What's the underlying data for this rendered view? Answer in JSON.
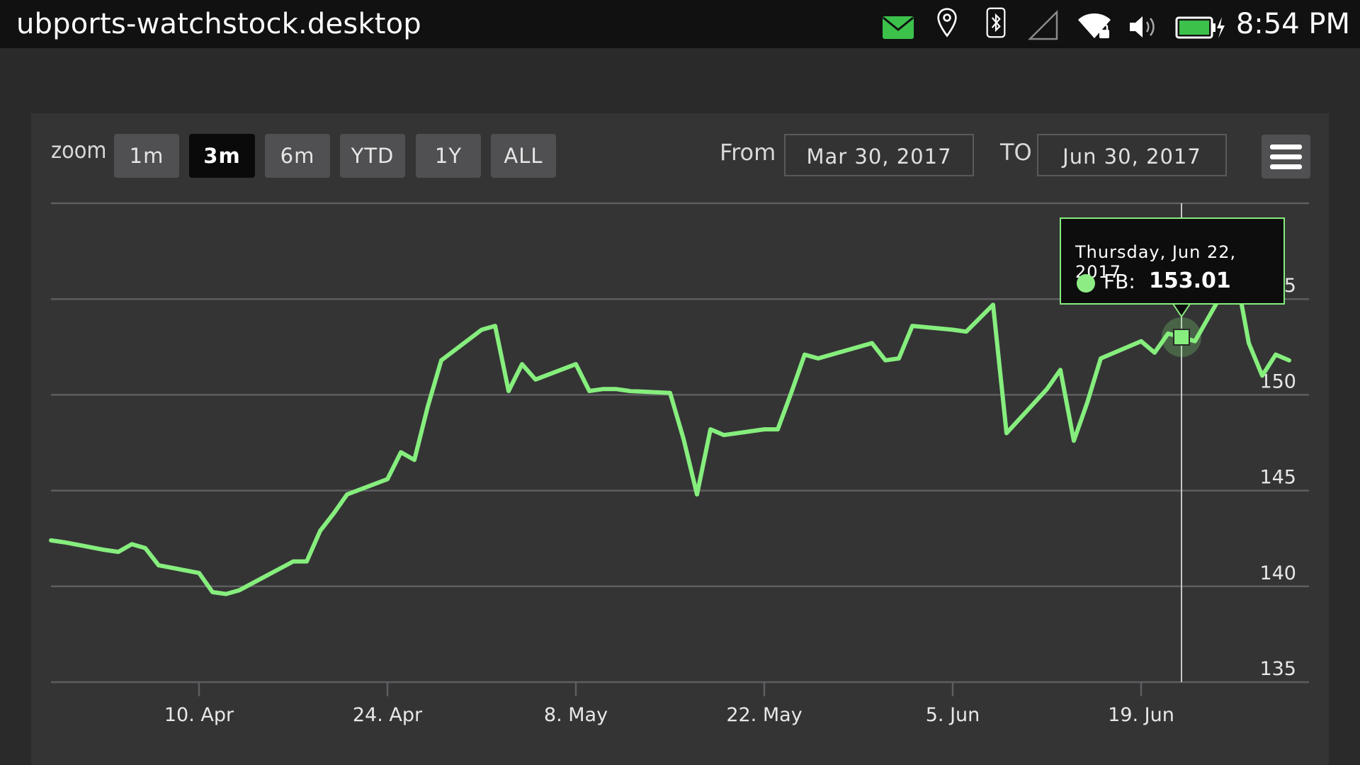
{
  "status_bar": {
    "title": "ubports-watchstock.desktop",
    "time": "8:54 PM",
    "indicators": [
      "mail-icon",
      "location-icon",
      "bluetooth-icon",
      "cellular-signal-icon",
      "wifi-icon",
      "volume-icon",
      "battery-charging-icon"
    ]
  },
  "toolbar": {
    "zoom_label": "zoom",
    "zoom_buttons": [
      {
        "label": "1m",
        "active": false
      },
      {
        "label": "3m",
        "active": true
      },
      {
        "label": "6m",
        "active": false
      },
      {
        "label": "YTD",
        "active": false
      },
      {
        "label": "1Y",
        "active": false
      },
      {
        "label": "ALL",
        "active": false
      }
    ],
    "from_label": "From",
    "from_value": "Mar 30, 2017",
    "to_label": "TO",
    "to_value": "Jun 30, 2017",
    "menu_icon": "hamburger-menu-icon"
  },
  "tooltip": {
    "date": "Thursday, Jun 22, 2017",
    "series": "FB:",
    "value": "153.01"
  },
  "colors": {
    "line": "#86ee7d",
    "background": "#343435",
    "grid": "#5e5e60",
    "status_bar": "#111111",
    "mail_indicator": "#3cc14b",
    "battery": "#3cc14b"
  },
  "chart_data": {
    "type": "line",
    "series": [
      {
        "name": "FB",
        "x": [
          "2017-03-30",
          "2017-03-31",
          "2017-04-03",
          "2017-04-04",
          "2017-04-05",
          "2017-04-06",
          "2017-04-07",
          "2017-04-10",
          "2017-04-11",
          "2017-04-12",
          "2017-04-13",
          "2017-04-17",
          "2017-04-18",
          "2017-04-19",
          "2017-04-20",
          "2017-04-21",
          "2017-04-24",
          "2017-04-25",
          "2017-04-26",
          "2017-04-27",
          "2017-04-28",
          "2017-05-01",
          "2017-05-02",
          "2017-05-03",
          "2017-05-04",
          "2017-05-05",
          "2017-05-08",
          "2017-05-09",
          "2017-05-10",
          "2017-05-11",
          "2017-05-12",
          "2017-05-15",
          "2017-05-16",
          "2017-05-17",
          "2017-05-18",
          "2017-05-19",
          "2017-05-22",
          "2017-05-23",
          "2017-05-24",
          "2017-05-25",
          "2017-05-26",
          "2017-05-30",
          "2017-05-31",
          "2017-06-01",
          "2017-06-02",
          "2017-06-05",
          "2017-06-06",
          "2017-06-07",
          "2017-06-08",
          "2017-06-09",
          "2017-06-12",
          "2017-06-13",
          "2017-06-14",
          "2017-06-15",
          "2017-06-16",
          "2017-06-19",
          "2017-06-20",
          "2017-06-21",
          "2017-06-22",
          "2017-06-23",
          "2017-06-26",
          "2017-06-27",
          "2017-06-28",
          "2017-06-29",
          "2017-06-30"
        ],
        "y": [
          142.4,
          142.3,
          141.9,
          141.8,
          142.2,
          142.0,
          141.1,
          140.7,
          139.7,
          139.6,
          139.8,
          141.3,
          141.3,
          142.9,
          143.8,
          144.8,
          145.6,
          147.0,
          146.6,
          149.4,
          151.8,
          153.4,
          153.6,
          150.2,
          151.6,
          150.8,
          151.6,
          150.2,
          150.3,
          150.3,
          150.2,
          150.1,
          147.7,
          144.8,
          148.2,
          147.9,
          148.2,
          148.2,
          150.1,
          152.1,
          151.9,
          152.7,
          151.8,
          151.9,
          153.6,
          153.4,
          153.3,
          154.0,
          154.7,
          148.0,
          150.3,
          151.3,
          147.6,
          149.6,
          151.9,
          152.8,
          152.2,
          153.2,
          153.01,
          152.8,
          156.5,
          152.7,
          151.0,
          152.1,
          151.8
        ]
      }
    ],
    "x_ticks": [
      "10. Apr",
      "24. Apr",
      "8. May",
      "22. May",
      "5. Jun",
      "19. Jun"
    ],
    "y_ticks": [
      135,
      140,
      145,
      150,
      155
    ],
    "ylim": [
      135,
      160
    ],
    "grid": true,
    "legend": "none",
    "highlight": {
      "x": "2017-06-22",
      "y": 153.01
    }
  }
}
